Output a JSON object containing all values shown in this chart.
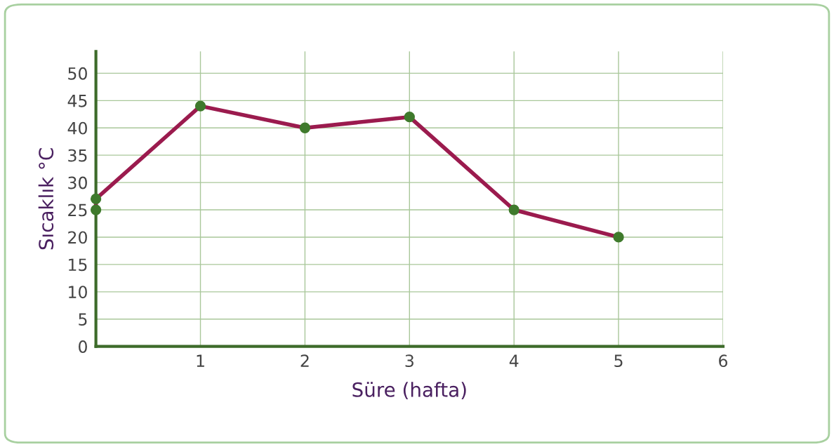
{
  "chart_data": {
    "type": "line",
    "xlabel": "Süre (hafta)",
    "ylabel": "Sıcaklık °C",
    "x": [
      0,
      0,
      1,
      2,
      3,
      4,
      5
    ],
    "series": [
      {
        "color": "#9b1b4e",
        "values": [
          25,
          27,
          44,
          40,
          42,
          25,
          20
        ]
      }
    ],
    "marker": "circle",
    "line_style": "solid",
    "grid": true,
    "xlim": [
      0,
      6
    ],
    "ylim": [
      0,
      54
    ],
    "xticks": [
      {
        "value": 0,
        "label": null
      },
      1,
      2,
      3,
      4,
      5,
      6
    ],
    "yticks": [
      0,
      5,
      10,
      15,
      20,
      25,
      30,
      35,
      40,
      45,
      50
    ]
  }
}
